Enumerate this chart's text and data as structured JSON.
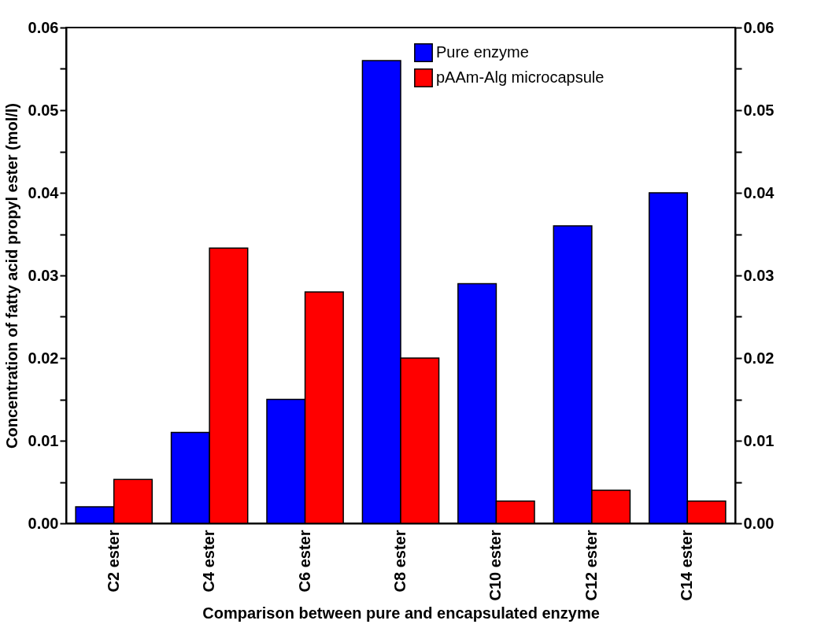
{
  "chart_data": {
    "type": "bar",
    "xlabel": "Comparison between pure and encapsulated enzyme",
    "ylabel": "Concentration of fatty acid  propyl ester (mol/l)",
    "categories": [
      "C2 ester",
      "C4 ester",
      "C6 ester",
      "C8 ester",
      "C10 ester",
      "C12 ester",
      "C14 ester"
    ],
    "series": [
      {
        "name": "Pure enzyme",
        "color": "#0000ff",
        "values": [
          0.002,
          0.011,
          0.015,
          0.056,
          0.029,
          0.036,
          0.04
        ]
      },
      {
        "name": "pAAm-Alg microcapsule",
        "color": "#ff0000",
        "values": [
          0.0053,
          0.0333,
          0.028,
          0.02,
          0.0027,
          0.004,
          0.0027
        ]
      }
    ],
    "ylim": [
      0,
      0.06
    ],
    "yticks": [
      "0.00",
      {
        "value": 0.005,
        "label": null
      },
      0.01,
      {
        "value": 0.015,
        "label": null
      },
      0.02,
      {
        "value": 0.025,
        "label": null
      },
      0.03,
      {
        "value": 0.035,
        "label": null
      },
      0.04,
      {
        "value": 0.045,
        "label": null
      },
      0.05,
      {
        "value": 0.055,
        "label": null
      },
      0.06
    ],
    "y2lim": [
      0,
      0.06
    ],
    "y2ticks": [
      {
        "value": 0,
        "label": "0.00"
      },
      {
        "value": 0.005,
        "label": null
      },
      0.01,
      {
        "value": 0.015,
        "label": null
      },
      0.02,
      {
        "value": 0.025,
        "label": null
      },
      0.03,
      {
        "value": 0.035,
        "label": null
      },
      0.04,
      {
        "value": 0.045,
        "label": null
      },
      0.05,
      {
        "value": 0.055,
        "label": null
      },
      0.06
    ],
    "grid": false,
    "legend": "top right"
  }
}
